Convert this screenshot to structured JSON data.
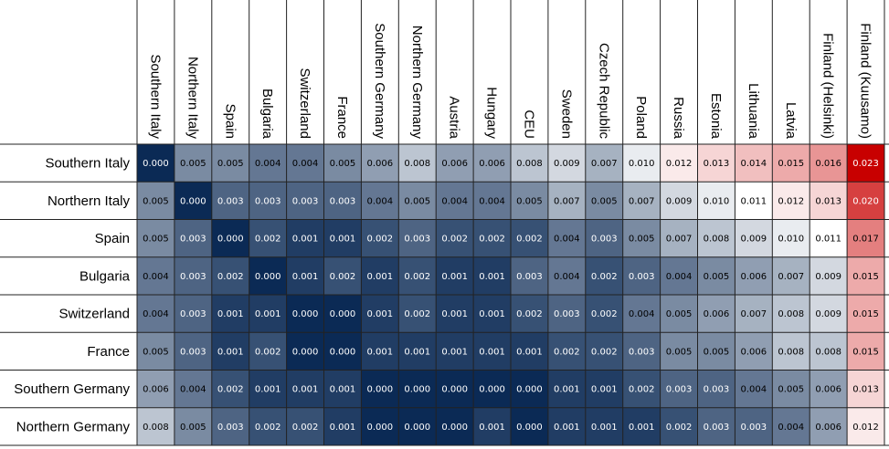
{
  "chart_data": {
    "type": "heatmap",
    "title": "",
    "rows": [
      "Southern Italy",
      "Northern Italy",
      "Spain",
      "Bulgaria",
      "Switzerland",
      "France",
      "Southern Germany",
      "Northern Germany"
    ],
    "columns": [
      "Southern Italy",
      "Northern Italy",
      "Spain",
      "Bulgaria",
      "Switzerland",
      "France",
      "Southern Germany",
      "Northern Germany",
      "Austria",
      "Hungary",
      "CEU",
      "Sweden",
      "Czech Republic",
      "Poland",
      "Russia",
      "Estonia",
      "Lithuania",
      "Latvia",
      "Finland (Helsinki)",
      "Finland (Kuusamo)"
    ],
    "values": [
      [
        "0.000",
        "0.005",
        "0.005",
        "0.004",
        "0.004",
        "0.005",
        "0.006",
        "0.008",
        "0.006",
        "0.006",
        "0.008",
        "0.009",
        "0.007",
        "0.010",
        "0.012",
        "0.013",
        "0.014",
        "0.015",
        "0.016",
        "0.023"
      ],
      [
        "0.005",
        "0.000",
        "0.003",
        "0.003",
        "0.003",
        "0.003",
        "0.004",
        "0.005",
        "0.004",
        "0.004",
        "0.005",
        "0.007",
        "0.005",
        "0.007",
        "0.009",
        "0.010",
        "0.011",
        "0.012",
        "0.013",
        "0.020"
      ],
      [
        "0.005",
        "0.003",
        "0.000",
        "0.002",
        "0.001",
        "0.001",
        "0.002",
        "0.003",
        "0.002",
        "0.002",
        "0.002",
        "0.004",
        "0.003",
        "0.005",
        "0.007",
        "0.008",
        "0.009",
        "0.010",
        "0.011",
        "0.017"
      ],
      [
        "0.004",
        "0.003",
        "0.002",
        "0.000",
        "0.001",
        "0.002",
        "0.001",
        "0.002",
        "0.001",
        "0.001",
        "0.003",
        "0.004",
        "0.002",
        "0.003",
        "0.004",
        "0.005",
        "0.006",
        "0.007",
        "0.009",
        "0.015"
      ],
      [
        "0.004",
        "0.003",
        "0.001",
        "0.001",
        "0.000",
        "0.000",
        "0.001",
        "0.002",
        "0.001",
        "0.001",
        "0.002",
        "0.003",
        "0.002",
        "0.004",
        "0.005",
        "0.006",
        "0.007",
        "0.008",
        "0.009",
        "0.015"
      ],
      [
        "0.005",
        "0.003",
        "0.001",
        "0.002",
        "0.000",
        "0.000",
        "0.001",
        "0.001",
        "0.001",
        "0.001",
        "0.001",
        "0.002",
        "0.002",
        "0.003",
        "0.005",
        "0.005",
        "0.006",
        "0.008",
        "0.008",
        "0.015"
      ],
      [
        "0.006",
        "0.004",
        "0.002",
        "0.001",
        "0.001",
        "0.001",
        "0.000",
        "0.000",
        "0.000",
        "0.000",
        "0.000",
        "0.001",
        "0.001",
        "0.002",
        "0.003",
        "0.003",
        "0.004",
        "0.005",
        "0.006",
        "0.013"
      ],
      [
        "0.008",
        "0.005",
        "0.003",
        "0.002",
        "0.002",
        "0.001",
        "0.000",
        "0.000",
        "0.000",
        "0.001",
        "0.000",
        "0.001",
        "0.001",
        "0.001",
        "0.002",
        "0.003",
        "0.003",
        "0.004",
        "0.006",
        "0.012"
      ]
    ],
    "color_scale": {
      "low_color": "#0b2a55",
      "mid_color": "#ffffff",
      "high_color": "#c80000",
      "low_value": 0.0,
      "mid_value": 0.011,
      "high_value": 0.023
    },
    "grid": true,
    "legend": "none"
  }
}
